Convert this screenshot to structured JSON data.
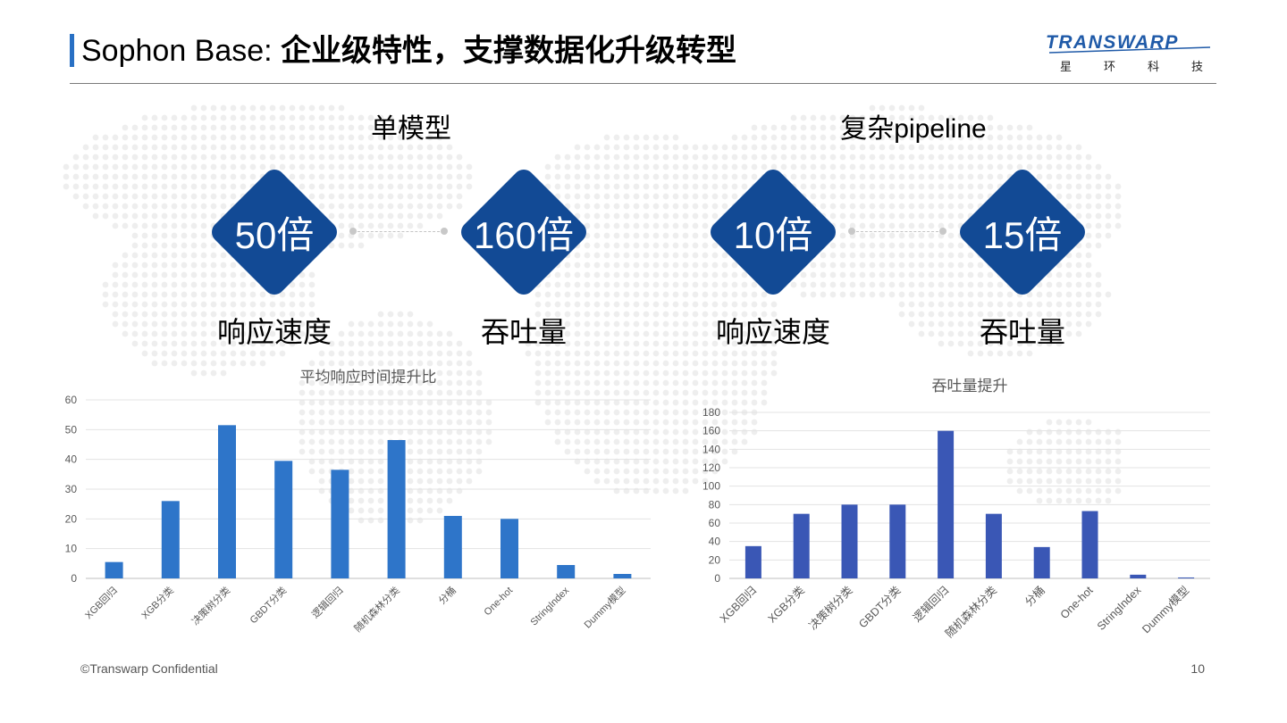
{
  "slide": {
    "title_prefix": "Sophon Base: ",
    "title_main": "企业级特性，支撑数据化升级转型",
    "logo_text": "TRANSWARP",
    "logo_sub": [
      "星",
      "环",
      "科",
      "技"
    ],
    "footer_left": "©Transwarp Confidential",
    "page_number": "10"
  },
  "groups": [
    {
      "title": "单模型",
      "metrics": [
        {
          "value": "50倍",
          "label": "响应速度"
        },
        {
          "value": "160倍",
          "label": "吞吐量"
        }
      ]
    },
    {
      "title": "复杂pipeline",
      "metrics": [
        {
          "value": "10倍",
          "label": "响应速度"
        },
        {
          "value": "15倍",
          "label": "吞吐量"
        }
      ]
    }
  ],
  "colors": {
    "accent": "#2870c4",
    "diamond": "#124a95",
    "bar_left": "#2e75c9",
    "bar_right": "#3a57b5"
  },
  "chart_data": [
    {
      "type": "bar",
      "title": "平均响应时间提升比",
      "categories": [
        "XGB回归",
        "XGB分类",
        "决策树分类",
        "GBDT分类",
        "逻辑回归",
        "随机森林分类",
        "分桶",
        "One-hot",
        "StringIndex",
        "Dummy模型"
      ],
      "values": [
        5.5,
        26,
        51.5,
        39.5,
        36.5,
        46.5,
        21,
        20,
        4.5,
        1.5
      ],
      "ylim": [
        0,
        60
      ],
      "yticks": [
        0,
        10,
        20,
        30,
        40,
        50,
        60
      ],
      "grid": true
    },
    {
      "type": "bar",
      "title": "吞吐量提升",
      "categories": [
        "XGB回归",
        "XGB分类",
        "决策树分类",
        "GBDT分类",
        "逻辑回归",
        "随机森林分类",
        "分桶",
        "One-hot",
        "StringIndex",
        "Dummy模型"
      ],
      "values": [
        35,
        70,
        80,
        80,
        160,
        70,
        34,
        73,
        4,
        1
      ],
      "ylim": [
        0,
        180
      ],
      "yticks": [
        0,
        20,
        40,
        60,
        80,
        100,
        120,
        140,
        160,
        180
      ],
      "grid": true
    }
  ]
}
